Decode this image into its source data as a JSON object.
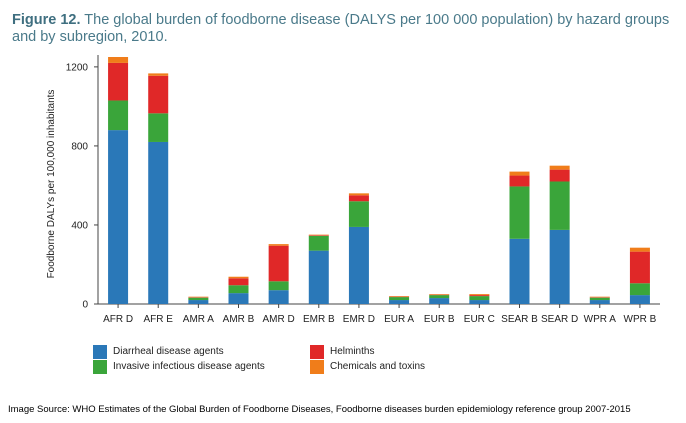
{
  "header": {
    "figure_label": "Figure 12.",
    "title_text": " The global burden of foodborne disease (DALYS per 100 000 population) by hazard groups and by subregion, 2010."
  },
  "chart_data": {
    "type": "bar",
    "stacked": true,
    "ylabel": "Foodborne DALYs per 100,000 inhabitants",
    "ylim": [
      0,
      1250
    ],
    "yticks": [
      0,
      400,
      800,
      1200
    ],
    "categories": [
      "AFR D",
      "AFR E",
      "AMR A",
      "AMR B",
      "AMR D",
      "EMR B",
      "EMR D",
      "EUR A",
      "EUR B",
      "EUR C",
      "SEAR B",
      "SEAR D",
      "WPR A",
      "WPR B"
    ],
    "series": [
      {
        "name": "Diarrheal disease agents",
        "color": "#2a78b8",
        "values": [
          880,
          820,
          20,
          55,
          70,
          270,
          390,
          20,
          30,
          20,
          330,
          375,
          20,
          45
        ]
      },
      {
        "name": "Invasive infectious disease agents",
        "color": "#3aa53a",
        "values": [
          150,
          145,
          12,
          40,
          45,
          75,
          130,
          15,
          15,
          20,
          265,
          245,
          12,
          60
        ]
      },
      {
        "name": "Helminths",
        "color": "#e02828",
        "values": [
          190,
          190,
          2,
          35,
          180,
          3,
          30,
          2,
          2,
          5,
          55,
          60,
          2,
          160
        ]
      },
      {
        "name": "Chemicals and toxins",
        "color": "#f07d1a",
        "values": [
          30,
          12,
          3,
          8,
          8,
          3,
          10,
          3,
          3,
          5,
          20,
          20,
          3,
          20
        ]
      }
    ],
    "grid": false,
    "legend_position": "bottom"
  },
  "source": {
    "text": "Image Source: WHO Estimates of the Global Burden of Foodborne Diseases, Foodborne diseases burden epidemiology reference group 2007-2015"
  }
}
